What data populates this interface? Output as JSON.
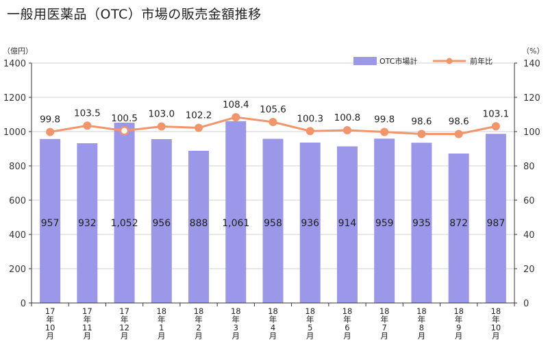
{
  "title": "一般用医薬品（OTC）市場の販売金額推移",
  "chart_data": {
    "type": "bar",
    "categories": [
      "17年10月",
      "17年11月",
      "17年12月",
      "18年1月",
      "18年2月",
      "18年3月",
      "18年4月",
      "18年5月",
      "18年6月",
      "18年7月",
      "18年8月",
      "18年9月",
      "18年10月"
    ],
    "category_labels": [
      [
        "17",
        "年",
        "10",
        "月"
      ],
      [
        "17",
        "年",
        "11",
        "月"
      ],
      [
        "17",
        "年",
        "12",
        "月"
      ],
      [
        "18",
        "年",
        "1",
        "月"
      ],
      [
        "18",
        "年",
        "2",
        "月"
      ],
      [
        "18",
        "年",
        "3",
        "月"
      ],
      [
        "18",
        "年",
        "4",
        "月"
      ],
      [
        "18",
        "年",
        "5",
        "月"
      ],
      [
        "18",
        "年",
        "6",
        "月"
      ],
      [
        "18",
        "年",
        "7",
        "月"
      ],
      [
        "18",
        "年",
        "8",
        "月"
      ],
      [
        "18",
        "年",
        "9",
        "月"
      ],
      [
        "18",
        "年",
        "10",
        "月"
      ]
    ],
    "series": [
      {
        "name": "OTC市場計",
        "type": "bar",
        "axis": "left",
        "values": [
          957,
          932,
          1052,
          956,
          888,
          1061,
          958,
          936,
          914,
          959,
          935,
          872,
          987
        ],
        "labels": [
          "957",
          "932",
          "1,052",
          "956",
          "888",
          "1,061",
          "958",
          "936",
          "914",
          "959",
          "935",
          "872",
          "987"
        ]
      },
      {
        "name": "前年比",
        "type": "line",
        "axis": "right",
        "values": [
          99.8,
          103.5,
          100.5,
          103.0,
          102.2,
          108.4,
          105.6,
          100.3,
          100.8,
          99.8,
          98.6,
          98.6,
          103.1
        ],
        "labels": [
          "99.8",
          "103.5",
          "100.5",
          "103.0",
          "102.2",
          "108.4",
          "105.6",
          "100.3",
          "100.8",
          "99.8",
          "98.6",
          "98.6",
          "103.1"
        ]
      }
    ],
    "left_axis": {
      "unit_label": "（億円）",
      "min": 0,
      "max": 1400,
      "ticks": [
        "0",
        "200",
        "400",
        "600",
        "800",
        "1000",
        "1200",
        "1400"
      ]
    },
    "right_axis": {
      "unit_label": "（%）",
      "min": 0,
      "max": 140,
      "ticks": [
        "0",
        "20",
        "40",
        "60",
        "80",
        "100",
        "120",
        "140"
      ]
    },
    "grid": true,
    "legend_position": "top-right",
    "colors": {
      "bar": "#9b98ea",
      "line": "#f2956b",
      "grid": "#d0d0d0",
      "axis": "#333333"
    }
  }
}
